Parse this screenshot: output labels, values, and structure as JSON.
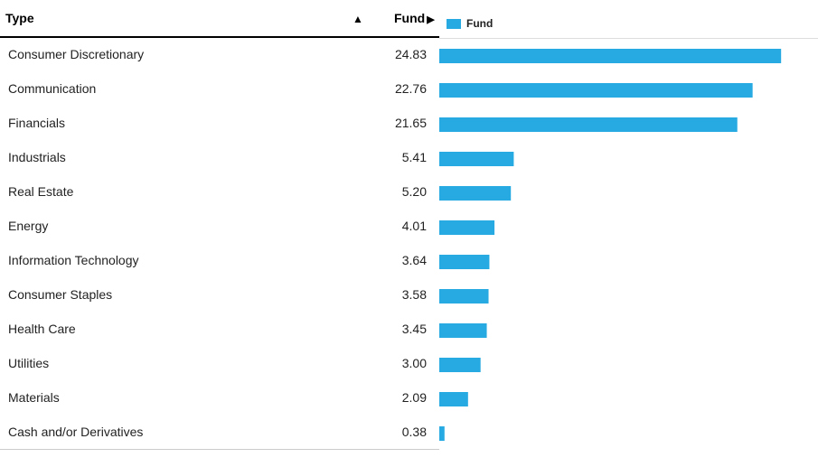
{
  "table": {
    "header_type": "Type",
    "header_sort_icon": "▲",
    "header_fund": "Fund",
    "header_fund_arrow": "▶"
  },
  "colors": {
    "bar": "#27aae1"
  },
  "chart_data": {
    "type": "bar",
    "orientation": "horizontal",
    "legend": [
      "Fund"
    ],
    "categories": [
      "Consumer Discretionary",
      "Communication",
      "Financials",
      "Industrials",
      "Real Estate",
      "Energy",
      "Information Technology",
      "Consumer Staples",
      "Health Care",
      "Utilities",
      "Materials",
      "Cash and/or Derivatives"
    ],
    "labels": [
      "24.83",
      "22.76",
      "21.65",
      "5.41",
      "5.20",
      "4.01",
      "3.64",
      "3.58",
      "3.45",
      "3.00",
      "2.09",
      "0.38"
    ],
    "series": [
      {
        "name": "Fund",
        "values": [
          24.83,
          22.76,
          21.65,
          5.41,
          5.2,
          4.01,
          3.64,
          3.58,
          3.45,
          3.0,
          2.09,
          0.38
        ]
      }
    ],
    "xlim": [
      0,
      26
    ]
  }
}
